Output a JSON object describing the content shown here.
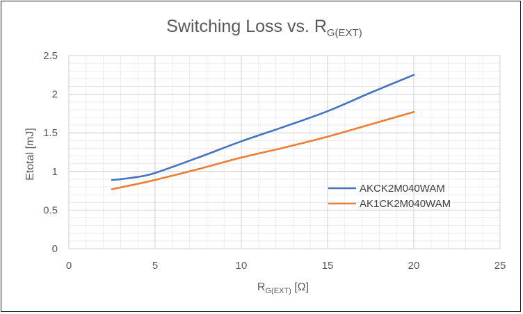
{
  "chart_data": {
    "type": "line",
    "title": {
      "main": "Switching Loss vs. R",
      "subscript": "G(EXT)"
    },
    "xlabel": {
      "main": "R",
      "subscript": "G(EXT)",
      "suffix": " [Ω]"
    },
    "ylabel": "Etotal [mJ]",
    "xlim": [
      0,
      25
    ],
    "ylim": [
      0,
      2.5
    ],
    "xticks": [
      0,
      5,
      10,
      15,
      20,
      25
    ],
    "yticks": [
      0,
      0.5,
      1,
      1.5,
      2,
      2.5
    ],
    "xtick_labels": [
      "0",
      "5",
      "10",
      "15",
      "20",
      "25"
    ],
    "ytick_labels": [
      "0",
      "0.5",
      "1",
      "1.5",
      "2",
      "2.5"
    ],
    "grid": {
      "major": true,
      "minor": true
    },
    "legend_position": "right",
    "series": [
      {
        "name": "AKCK2M040WAM",
        "color": "#4472c4",
        "x": [
          2.5,
          3,
          4,
          5,
          7.5,
          10,
          12.5,
          15,
          17.5,
          20
        ],
        "y": [
          0.89,
          0.9,
          0.93,
          0.98,
          1.18,
          1.39,
          1.58,
          1.78,
          2.02,
          2.25
        ]
      },
      {
        "name": "AK1CK2M040WAM",
        "color": "#ed7d31",
        "x": [
          2.5,
          4,
          5,
          7.5,
          10,
          12.5,
          15,
          17.5,
          20
        ],
        "y": [
          0.77,
          0.84,
          0.89,
          1.03,
          1.18,
          1.31,
          1.45,
          1.61,
          1.77
        ]
      }
    ]
  }
}
